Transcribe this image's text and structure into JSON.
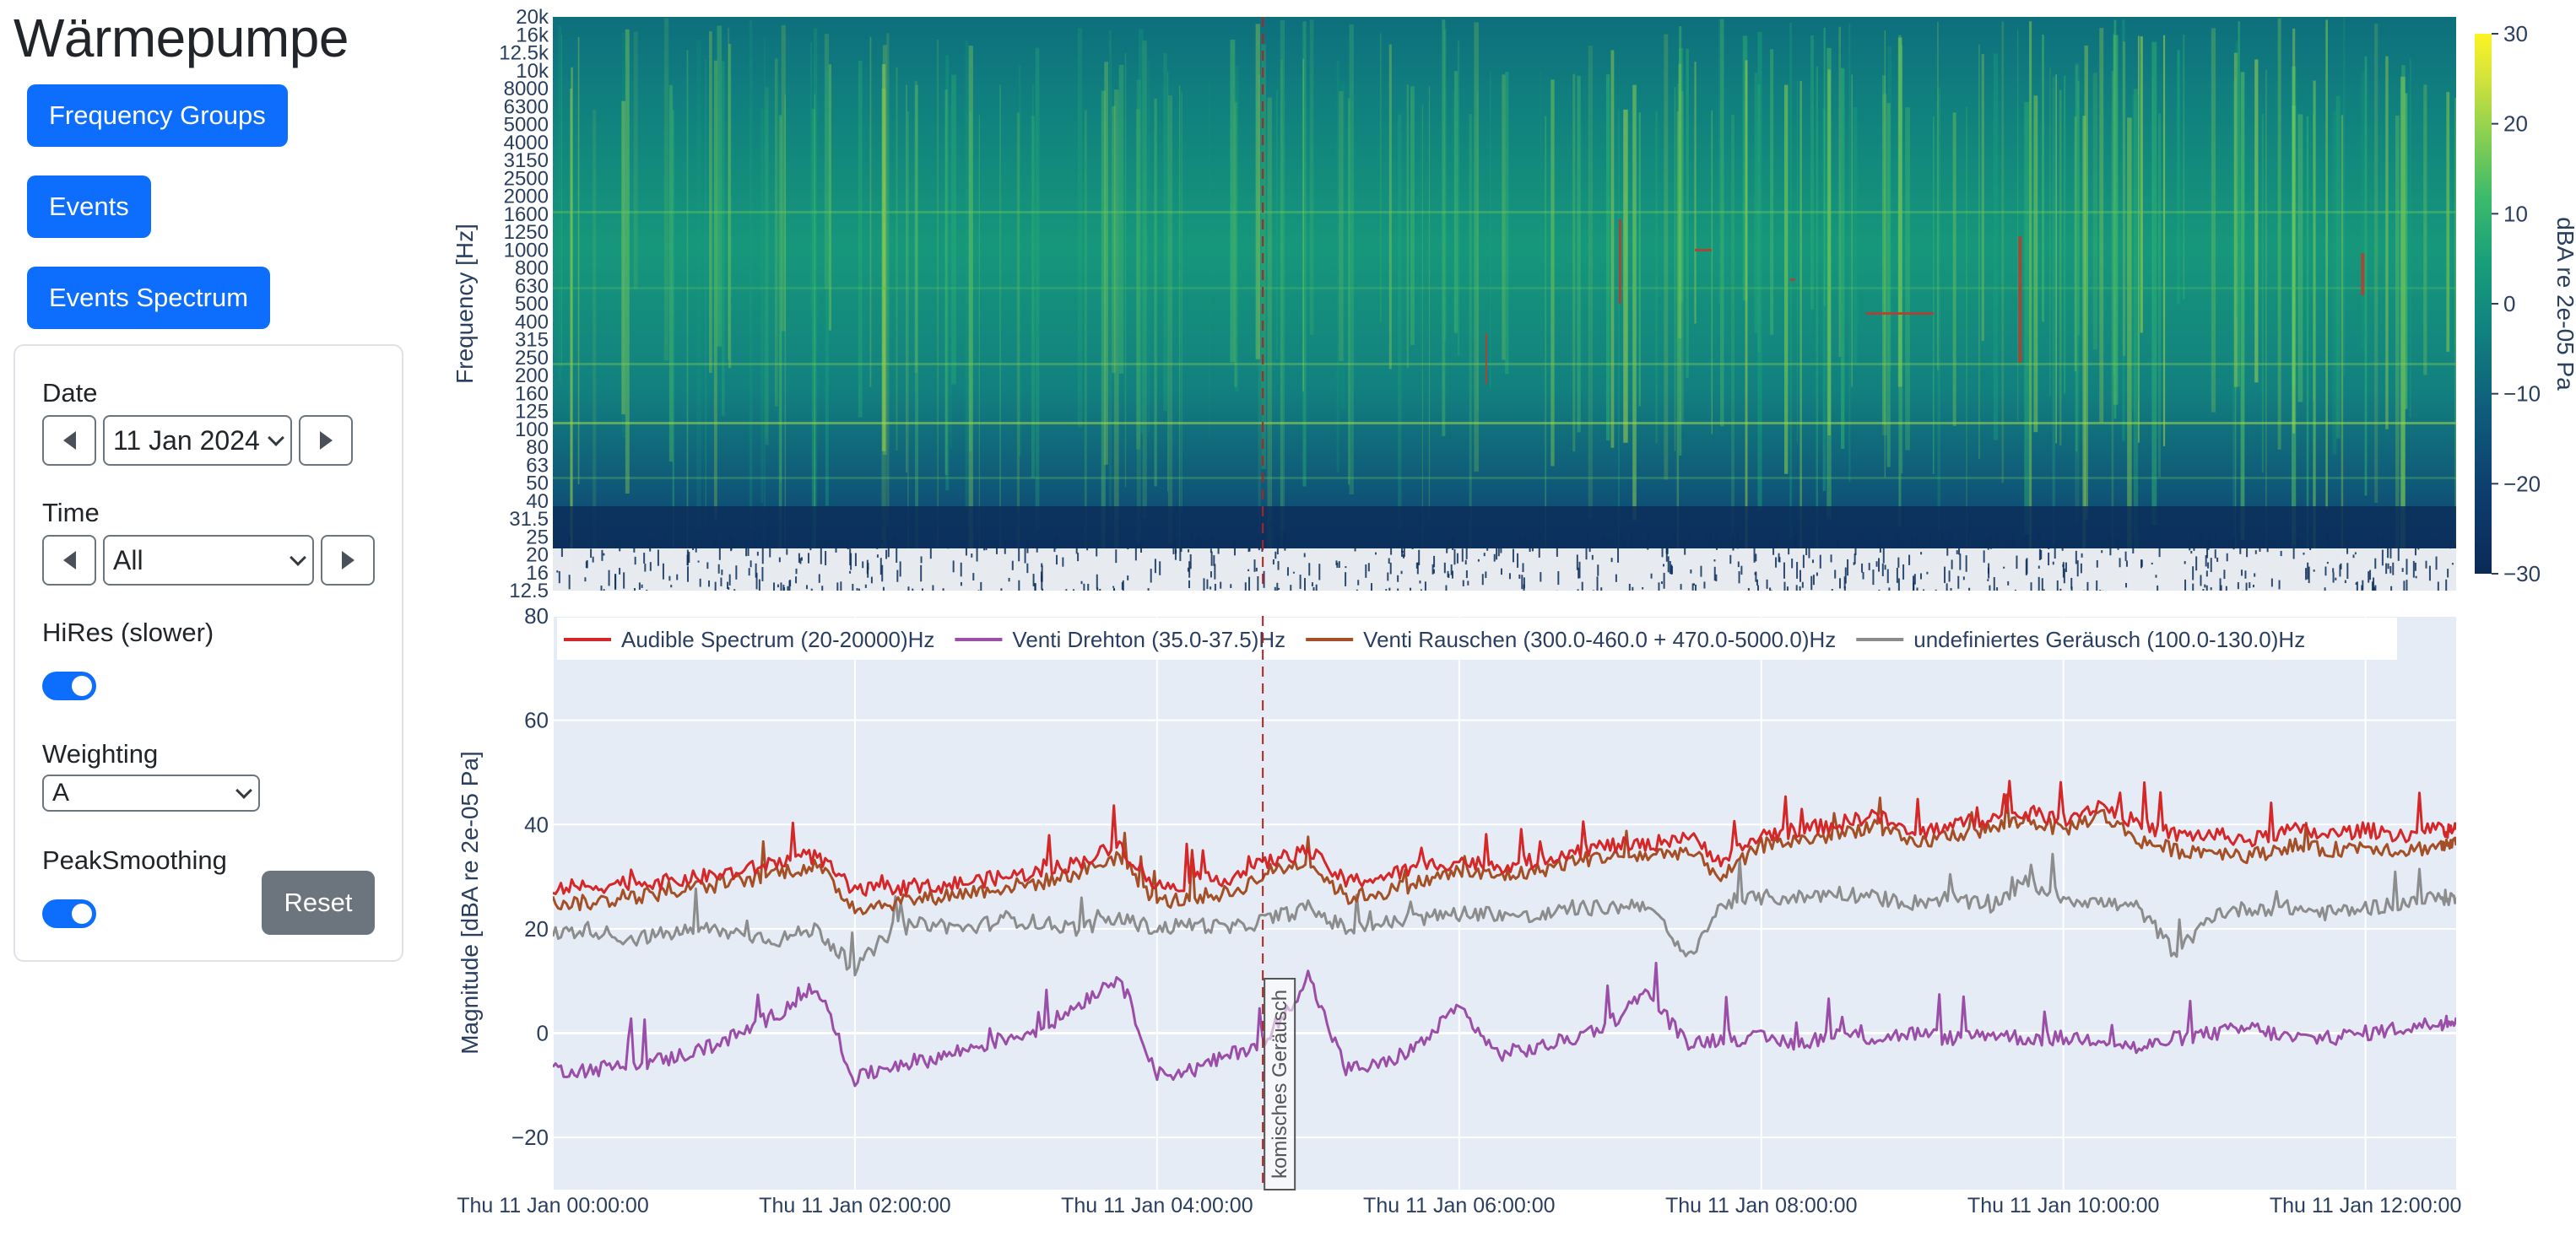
{
  "app": {
    "title": "Wärmepumpe"
  },
  "nav": {
    "frequency_groups": "Frequency Groups",
    "events": "Events",
    "events_spectrum": "Events Spectrum"
  },
  "controls": {
    "date_label": "Date",
    "date_value": "11 Jan 2024",
    "time_label": "Time",
    "time_value": "All",
    "hires_label": "HiRes (slower)",
    "hires_on": true,
    "weighting_label": "Weighting",
    "weighting_value": "A",
    "peak_label": "PeakSmoothing",
    "peak_on": true,
    "reset_label": "Reset"
  },
  "chart_data": [
    {
      "type": "heatmap",
      "title": "",
      "ylabel": "Frequency [Hz]",
      "y_ticks": [
        "12.5",
        "16",
        "20",
        "25",
        "31.5",
        "40",
        "50",
        "63",
        "80",
        "100",
        "125",
        "160",
        "200",
        "250",
        "315",
        "400",
        "500",
        "630",
        "800",
        "1000",
        "1250",
        "1600",
        "2000",
        "2500",
        "3150",
        "4000",
        "5000",
        "6300",
        "8000",
        "10k",
        "12.5k",
        "16k",
        "20k"
      ],
      "colorbar": {
        "title": "dBA re 2e-05 Pa",
        "range": [
          -30,
          30
        ],
        "ticks": [
          "30",
          "20",
          "10",
          "0",
          "−10",
          "−20",
          "−30"
        ],
        "colors": [
          "#0b2a55",
          "#0d3d6e",
          "#0f5c7a",
          "#10827f",
          "#18a07a",
          "#3dbb6b",
          "#8fd14f",
          "#d5e33a",
          "#fcf423"
        ]
      },
      "x_range_hours": [
        0,
        12.6
      ]
    },
    {
      "type": "line",
      "title": "",
      "ylabel": "Magnitude [dBA re 2e-05 Pa]",
      "ylim": [
        -30,
        80
      ],
      "y_ticks": [
        "−20",
        "0",
        "20",
        "40",
        "60",
        "80"
      ],
      "x_ticks": [
        "Thu 11 Jan 00:00:00",
        "Thu 11 Jan 02:00:00",
        "Thu 11 Jan 04:00:00",
        "Thu 11 Jan 06:00:00",
        "Thu 11 Jan 08:00:00",
        "Thu 11 Jan 10:00:00",
        "Thu 11 Jan 12:00:00"
      ],
      "x_range_hours": [
        0,
        12.6
      ],
      "legend_position": "top",
      "x_hours": [
        0,
        0.25,
        0.5,
        0.75,
        1,
        1.25,
        1.5,
        1.75,
        2,
        2.25,
        2.5,
        2.75,
        3,
        3.25,
        3.5,
        3.75,
        4,
        4.25,
        4.5,
        4.75,
        5,
        5.25,
        5.5,
        5.75,
        6,
        6.25,
        6.5,
        6.75,
        7,
        7.25,
        7.5,
        7.75,
        8,
        8.25,
        8.5,
        8.75,
        9,
        9.25,
        9.5,
        9.75,
        10,
        10.25,
        10.5,
        10.75,
        11,
        11.25,
        11.5,
        11.75,
        12,
        12.25,
        12.5,
        12.6
      ],
      "series": [
        {
          "name": "Audible Spectrum (20-20000)Hz",
          "color": "#d62728",
          "values": [
            28,
            28,
            29,
            29,
            30,
            31,
            33,
            34,
            27,
            28,
            28,
            29,
            30,
            31,
            33,
            36,
            28,
            29,
            30,
            33,
            35,
            29,
            30,
            32,
            33,
            32,
            33,
            35,
            36,
            36,
            38,
            33,
            38,
            39,
            40,
            42,
            38,
            40,
            41,
            42,
            41,
            44,
            40,
            38,
            38,
            37,
            39,
            38,
            39,
            38,
            39,
            39
          ]
        },
        {
          "name": "Venti Drehton (35.0-37.5)Hz",
          "color": "#9b4ea8",
          "values": [
            -7,
            -7,
            -6,
            -5,
            -3,
            0,
            4,
            9,
            -9,
            -6,
            -5,
            -3,
            -1,
            1,
            6,
            11,
            -8,
            -7,
            -4,
            -1,
            11,
            -7,
            -6,
            -2,
            5,
            -4,
            -3,
            -1,
            2,
            8,
            -2,
            -1,
            -1,
            -2,
            0,
            -1,
            0,
            -1,
            0,
            -1,
            -1,
            -1,
            -3,
            -1,
            0,
            1,
            -1,
            -1,
            0,
            1,
            2,
            3
          ]
        },
        {
          "name": "Venti Rauschen (300.0-460.0 + 470.0-5000.0)Hz",
          "color": "#a44f25",
          "values": [
            25,
            25,
            26,
            27,
            28,
            29,
            31,
            32,
            24,
            25,
            26,
            27,
            28,
            29,
            31,
            34,
            25,
            26,
            27,
            31,
            33,
            26,
            27,
            29,
            31,
            30,
            31,
            33,
            34,
            34,
            35,
            30,
            36,
            37,
            38,
            40,
            36,
            38,
            39,
            41,
            39,
            42,
            37,
            35,
            35,
            34,
            36,
            35,
            36,
            35,
            36,
            36
          ]
        },
        {
          "name": "undefiniertes Geräusch (100.0-130.0)Hz",
          "color": "#8c8c8c",
          "values": [
            19,
            20,
            18,
            19,
            20,
            19,
            18,
            20,
            12,
            20,
            21,
            20,
            22,
            21,
            20,
            22,
            20,
            21,
            20,
            22,
            24,
            20,
            21,
            22,
            23,
            23,
            22,
            24,
            24,
            25,
            14,
            25,
            26,
            26,
            27,
            26,
            25,
            26,
            24,
            29,
            26,
            25,
            24,
            15,
            23,
            24,
            24,
            23,
            24,
            25,
            26,
            26
          ]
        }
      ],
      "event": {
        "x_hour": 4.7,
        "label": "komisches Geräusch",
        "color": "#b22222"
      }
    }
  ]
}
